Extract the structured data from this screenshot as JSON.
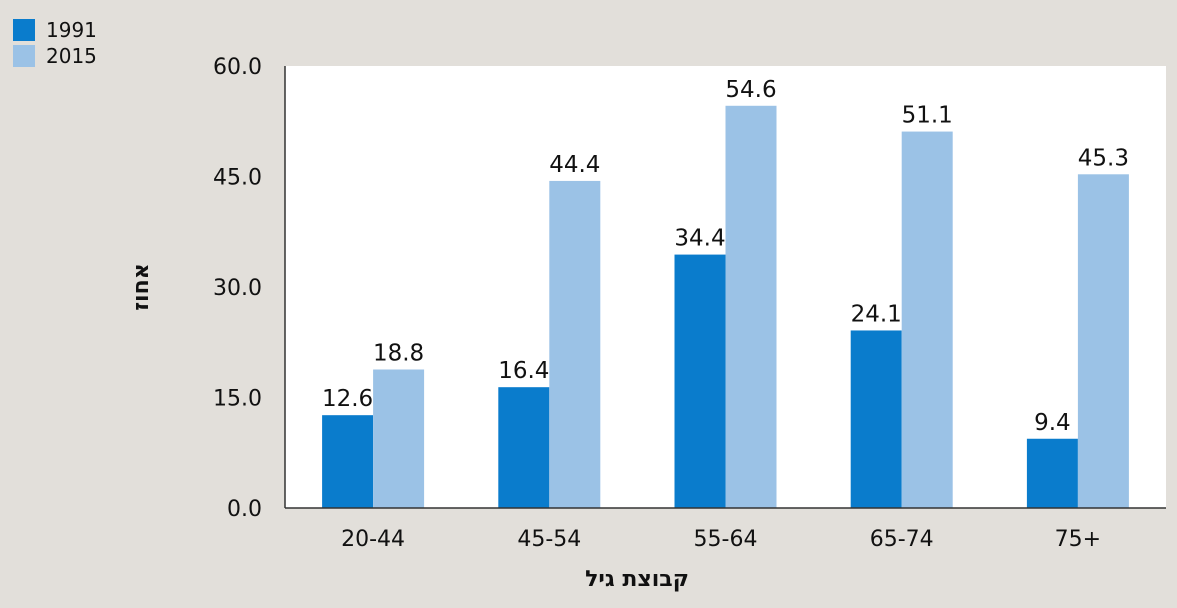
{
  "chart_data": {
    "type": "bar",
    "categories": [
      "20-44",
      "45-54",
      "55-64",
      "65-74",
      "75+"
    ],
    "series": [
      {
        "name": "1991",
        "values": [
          12.6,
          16.4,
          34.4,
          24.1,
          9.4
        ],
        "color": "#0a7ccc"
      },
      {
        "name": "2015",
        "values": [
          18.8,
          44.4,
          54.6,
          51.1,
          45.3
        ],
        "color": "#9bc2e6"
      }
    ],
    "data_labels": [
      [
        "12.6",
        "16.4",
        "34.4",
        "24.1",
        "9.4"
      ],
      [
        "18.8",
        "44.4",
        "54.6",
        "51.1",
        "45.3"
      ]
    ],
    "yticks": [
      "0.0",
      "15.0",
      "30.0",
      "45.0",
      "60.0"
    ],
    "ytick_values": [
      0,
      15,
      30,
      45,
      60
    ],
    "xlabel": "קבוצת גיל",
    "ylabel": "אחוז",
    "ylim": [
      0,
      60
    ],
    "legend_position": "top-left",
    "grid": false,
    "plot_background": "#ffffff",
    "page_background": "#e2dfda"
  }
}
